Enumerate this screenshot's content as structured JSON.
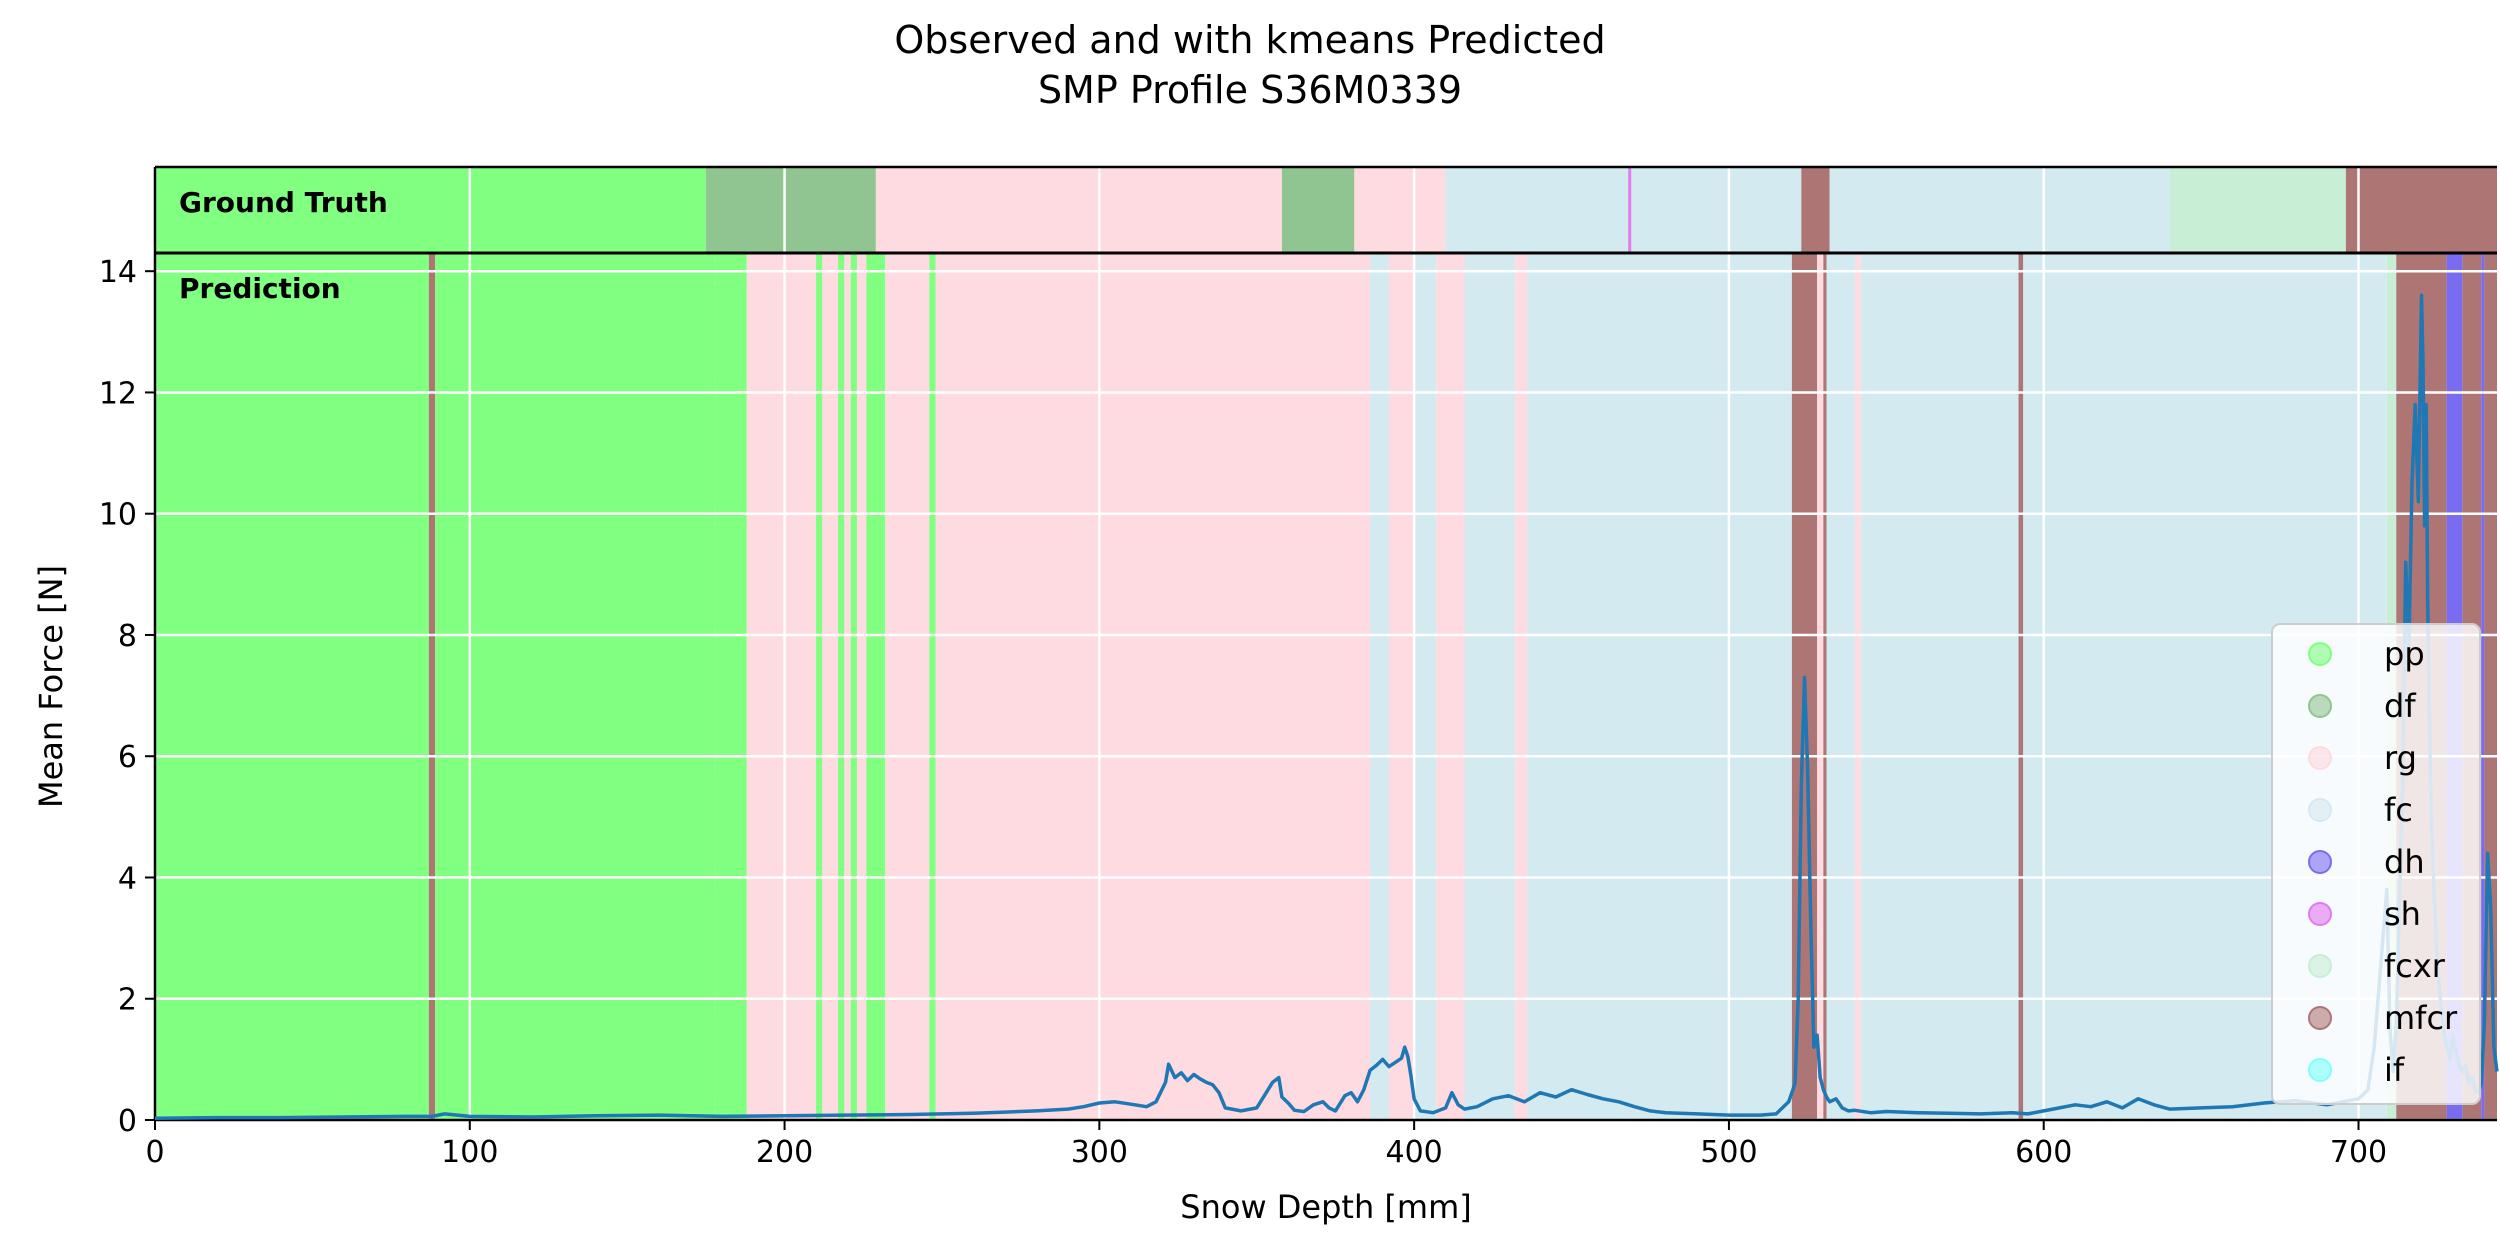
{
  "colors": {
    "pp": "#80ff80",
    "df": "#90c490",
    "rg": "#fddbe0",
    "fc": "#d3eaf1",
    "dh": "#7a6cf0",
    "sh": "#e07af0",
    "fcxr": "#c8efd6",
    "mfcr": "#ad7675",
    "if": "#80ffff",
    "line": "#1f77b4",
    "grid": "#ffffff"
  },
  "chart_data": {
    "type": "line",
    "title": "Observed and with kmeans Predicted",
    "subtitle": "SMP Profile S36M0339",
    "xlabel": "Snow Depth [mm]",
    "ylabel": "Mean Force [N]",
    "xlim": [
      0,
      744
    ],
    "ylim": [
      0,
      14.3
    ],
    "x_ticks": [
      "0",
      "100",
      "200",
      "300",
      "400",
      "500",
      "600",
      "700"
    ],
    "y_ticks": [
      "0",
      "2",
      "4",
      "6",
      "8",
      "10",
      "12",
      "14"
    ],
    "grid": true,
    "legend_position": "bottom-right",
    "legend": [
      {
        "label": "pp",
        "class": "pp"
      },
      {
        "label": "df",
        "class": "df"
      },
      {
        "label": "rg",
        "class": "rg"
      },
      {
        "label": "fc",
        "class": "fc"
      },
      {
        "label": "dh",
        "class": "dh"
      },
      {
        "label": "sh",
        "class": "sh"
      },
      {
        "label": "fcxr",
        "class": "fcxr"
      },
      {
        "label": "mfcr",
        "class": "mfcr"
      },
      {
        "label": "if",
        "class": "if"
      }
    ],
    "ground_truth_label": "Ground Truth",
    "prediction_label": "Prediction",
    "ground_truth": [
      {
        "start": 0,
        "end": 175,
        "class": "pp"
      },
      {
        "start": 175,
        "end": 229,
        "class": "df"
      },
      {
        "start": 229,
        "end": 358,
        "class": "rg"
      },
      {
        "start": 358,
        "end": 381,
        "class": "df"
      },
      {
        "start": 381,
        "end": 410,
        "class": "rg"
      },
      {
        "start": 410,
        "end": 468,
        "class": "fc"
      },
      {
        "start": 468,
        "end": 469,
        "class": "sh"
      },
      {
        "start": 469,
        "end": 523,
        "class": "fc"
      },
      {
        "start": 523,
        "end": 532,
        "class": "mfcr"
      },
      {
        "start": 532,
        "end": 640,
        "class": "fc"
      },
      {
        "start": 640,
        "end": 696,
        "class": "fcxr"
      },
      {
        "start": 696,
        "end": 744,
        "class": "mfcr"
      }
    ],
    "prediction": [
      {
        "start": 0,
        "end": 87,
        "class": "pp"
      },
      {
        "start": 87,
        "end": 89,
        "class": "mfcr"
      },
      {
        "start": 89,
        "end": 178,
        "class": "pp"
      },
      {
        "start": 178,
        "end": 188,
        "class": "pp"
      },
      {
        "start": 188,
        "end": 210,
        "class": "rg"
      },
      {
        "start": 210,
        "end": 212,
        "class": "pp"
      },
      {
        "start": 212,
        "end": 217,
        "class": "rg"
      },
      {
        "start": 217,
        "end": 219,
        "class": "pp"
      },
      {
        "start": 219,
        "end": 221,
        "class": "rg"
      },
      {
        "start": 221,
        "end": 223,
        "class": "pp"
      },
      {
        "start": 223,
        "end": 226,
        "class": "rg"
      },
      {
        "start": 226,
        "end": 232,
        "class": "pp"
      },
      {
        "start": 232,
        "end": 246,
        "class": "rg"
      },
      {
        "start": 246,
        "end": 248,
        "class": "pp"
      },
      {
        "start": 248,
        "end": 386,
        "class": "rg"
      },
      {
        "start": 386,
        "end": 392,
        "class": "fc"
      },
      {
        "start": 392,
        "end": 400,
        "class": "rg"
      },
      {
        "start": 400,
        "end": 407,
        "class": "fc"
      },
      {
        "start": 407,
        "end": 416,
        "class": "rg"
      },
      {
        "start": 416,
        "end": 432,
        "class": "fc"
      },
      {
        "start": 432,
        "end": 436,
        "class": "rg"
      },
      {
        "start": 436,
        "end": 520,
        "class": "fc"
      },
      {
        "start": 520,
        "end": 528,
        "class": "mfcr"
      },
      {
        "start": 528,
        "end": 530,
        "class": "rg"
      },
      {
        "start": 530,
        "end": 531,
        "class": "mfcr"
      },
      {
        "start": 531,
        "end": 540,
        "class": "fc"
      },
      {
        "start": 540,
        "end": 542,
        "class": "rg"
      },
      {
        "start": 542,
        "end": 592,
        "class": "fc"
      },
      {
        "start": 592,
        "end": 593.5,
        "class": "mfcr"
      },
      {
        "start": 593.5,
        "end": 709,
        "class": "fc"
      },
      {
        "start": 709,
        "end": 712,
        "class": "fcxr"
      },
      {
        "start": 712,
        "end": 728,
        "class": "mfcr"
      },
      {
        "start": 728,
        "end": 733,
        "class": "dh"
      },
      {
        "start": 733,
        "end": 739,
        "class": "mfcr"
      },
      {
        "start": 739,
        "end": 740,
        "class": "dh"
      },
      {
        "start": 740,
        "end": 744,
        "class": "mfcr"
      }
    ],
    "series": [
      {
        "x": [
          0,
          20,
          40,
          60,
          80,
          88,
          92,
          100,
          120,
          140,
          160,
          180,
          200,
          220,
          240,
          260,
          270,
          280,
          290,
          295,
          300,
          305,
          310,
          315,
          318,
          321,
          322,
          324,
          326,
          328,
          330,
          332,
          334,
          336,
          338,
          340,
          345,
          350,
          353,
          355,
          357,
          358,
          360,
          362,
          365,
          368,
          371,
          373,
          375,
          378,
          380,
          382,
          384,
          386,
          388,
          390,
          392,
          394,
          396,
          397,
          398,
          399,
          400,
          402,
          406,
          410,
          412,
          414,
          416,
          420,
          425,
          430,
          435,
          440,
          445,
          450,
          455,
          460,
          465,
          470,
          475,
          480,
          490,
          500,
          510,
          515,
          519,
          521,
          522,
          523,
          524,
          525,
          526,
          527,
          528,
          529,
          530,
          531,
          532,
          534,
          536,
          538,
          540,
          545,
          550,
          560,
          570,
          580,
          590,
          595,
          600,
          605,
          610,
          615,
          620,
          625,
          630,
          635,
          640,
          650,
          660,
          670,
          680,
          690,
          695,
          700,
          703,
          705,
          707,
          709,
          710,
          711,
          712,
          713,
          714,
          715,
          716,
          717,
          718,
          719,
          720,
          720.5,
          721,
          721.5,
          722,
          723,
          724,
          725,
          726,
          727,
          728,
          729,
          730,
          731,
          732,
          733,
          734,
          735,
          736,
          737,
          738,
          739,
          740,
          741,
          742,
          743,
          744
        ],
        "y": [
          0.03,
          0.04,
          0.04,
          0.05,
          0.06,
          0.06,
          0.1,
          0.06,
          0.05,
          0.07,
          0.08,
          0.06,
          0.07,
          0.08,
          0.09,
          0.11,
          0.13,
          0.15,
          0.18,
          0.22,
          0.28,
          0.3,
          0.26,
          0.22,
          0.3,
          0.62,
          0.92,
          0.7,
          0.78,
          0.65,
          0.75,
          0.68,
          0.62,
          0.58,
          0.45,
          0.2,
          0.15,
          0.2,
          0.45,
          0.62,
          0.7,
          0.38,
          0.28,
          0.16,
          0.14,
          0.25,
          0.3,
          0.2,
          0.15,
          0.4,
          0.45,
          0.3,
          0.5,
          0.82,
          0.9,
          1.0,
          0.88,
          0.95,
          1.02,
          1.2,
          1.05,
          0.72,
          0.35,
          0.15,
          0.12,
          0.2,
          0.45,
          0.25,
          0.18,
          0.22,
          0.35,
          0.4,
          0.3,
          0.45,
          0.38,
          0.5,
          0.42,
          0.35,
          0.3,
          0.22,
          0.15,
          0.12,
          0.1,
          0.08,
          0.08,
          0.1,
          0.3,
          0.6,
          2.0,
          5.5,
          7.3,
          5.8,
          3.2,
          1.2,
          1.4,
          0.7,
          0.5,
          0.38,
          0.3,
          0.35,
          0.2,
          0.15,
          0.16,
          0.12,
          0.14,
          0.12,
          0.11,
          0.1,
          0.12,
          0.1,
          0.15,
          0.2,
          0.25,
          0.22,
          0.3,
          0.2,
          0.35,
          0.25,
          0.18,
          0.2,
          0.22,
          0.28,
          0.32,
          0.25,
          0.3,
          0.35,
          0.5,
          1.2,
          2.5,
          3.8,
          1.5,
          0.8,
          1.6,
          3.5,
          5.5,
          9.2,
          7.8,
          10.5,
          11.8,
          10.2,
          13.6,
          12.5,
          9.8,
          11.8,
          8.5,
          5.2,
          3.8,
          2.6,
          2.0,
          1.5,
          1.2,
          1.0,
          1.4,
          1.1,
          0.9,
          0.8,
          0.9,
          0.6,
          0.7,
          0.5,
          0.45,
          0.6,
          1.6,
          4.4,
          3.5,
          1.2,
          0.8
        ]
      }
    ]
  }
}
